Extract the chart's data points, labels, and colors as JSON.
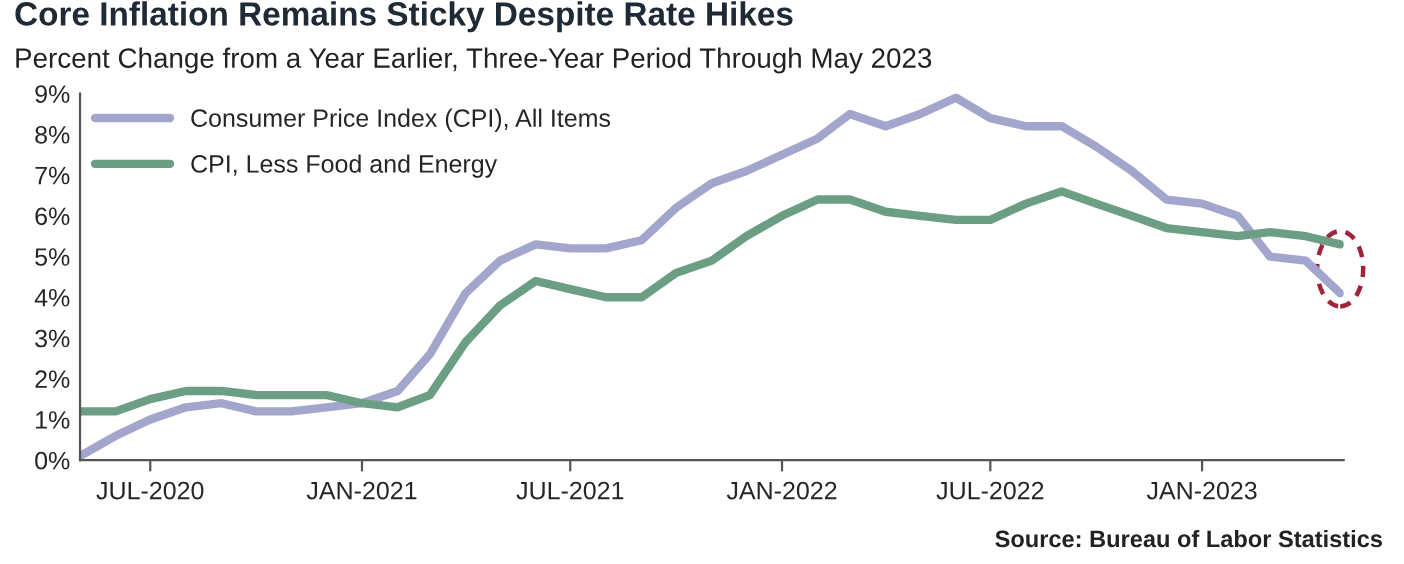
{
  "chart_data": {
    "type": "line",
    "title": "Core Inflation Remains Sticky Despite Rate Hikes",
    "subtitle": "Percent Change from a Year Earlier, Three-Year Period Through May 2023",
    "x": [
      "2020-05",
      "2020-06",
      "2020-07",
      "2020-08",
      "2020-09",
      "2020-10",
      "2020-11",
      "2020-12",
      "2021-01",
      "2021-02",
      "2021-03",
      "2021-04",
      "2021-05",
      "2021-06",
      "2021-07",
      "2021-08",
      "2021-09",
      "2021-10",
      "2021-11",
      "2021-12",
      "2022-01",
      "2022-02",
      "2022-03",
      "2022-04",
      "2022-05",
      "2022-06",
      "2022-07",
      "2022-08",
      "2022-09",
      "2022-10",
      "2022-11",
      "2022-12",
      "2023-01",
      "2023-02",
      "2023-03",
      "2023-04",
      "2023-05"
    ],
    "series": [
      {
        "name": "Consumer Price Index (CPI), All Items",
        "color": "#a3a6cc",
        "values": [
          0.1,
          0.6,
          1.0,
          1.3,
          1.4,
          1.2,
          1.2,
          1.3,
          1.4,
          1.7,
          2.6,
          4.1,
          4.9,
          5.3,
          5.2,
          5.2,
          5.4,
          6.2,
          6.8,
          7.1,
          7.5,
          7.9,
          8.5,
          8.2,
          8.5,
          8.9,
          8.4,
          8.2,
          8.2,
          7.7,
          7.1,
          6.4,
          6.3,
          6.0,
          5.0,
          4.9,
          4.1
        ]
      },
      {
        "name": "CPI, Less Food and Energy",
        "color": "#6b9e82",
        "values": [
          1.2,
          1.2,
          1.5,
          1.7,
          1.7,
          1.6,
          1.6,
          1.6,
          1.4,
          1.3,
          1.6,
          2.9,
          3.8,
          4.4,
          4.2,
          4.0,
          4.0,
          4.6,
          4.9,
          5.5,
          6.0,
          6.4,
          6.4,
          6.1,
          6.0,
          5.9,
          5.9,
          6.3,
          6.6,
          6.3,
          6.0,
          5.7,
          5.6,
          5.5,
          5.6,
          5.5,
          5.3
        ]
      }
    ],
    "xlim": [
      "2020-05",
      "2023-05"
    ],
    "xticks": [
      {
        "value": "2020-07",
        "label": "JUL-2020"
      },
      {
        "value": "2021-01",
        "label": "JAN-2021"
      },
      {
        "value": "2021-07",
        "label": "JUL-2021"
      },
      {
        "value": "2022-01",
        "label": "JAN-2022"
      },
      {
        "value": "2022-07",
        "label": "JUL-2022"
      },
      {
        "value": "2023-01",
        "label": "JAN-2023"
      }
    ],
    "ylim": [
      0,
      9
    ],
    "yticks": [
      {
        "value": 0,
        "label": "0%"
      },
      {
        "value": 1,
        "label": "1%"
      },
      {
        "value": 2,
        "label": "2%"
      },
      {
        "value": 3,
        "label": "3%"
      },
      {
        "value": 4,
        "label": "4%"
      },
      {
        "value": 5,
        "label": "5%"
      },
      {
        "value": 6,
        "label": "6%"
      },
      {
        "value": 7,
        "label": "7%"
      },
      {
        "value": 8,
        "label": "8%"
      },
      {
        "value": 9,
        "label": "9%"
      }
    ],
    "grid": false,
    "legend": "top left",
    "annotations": [
      "Source: Bureau of Labor Statistics"
    ]
  }
}
